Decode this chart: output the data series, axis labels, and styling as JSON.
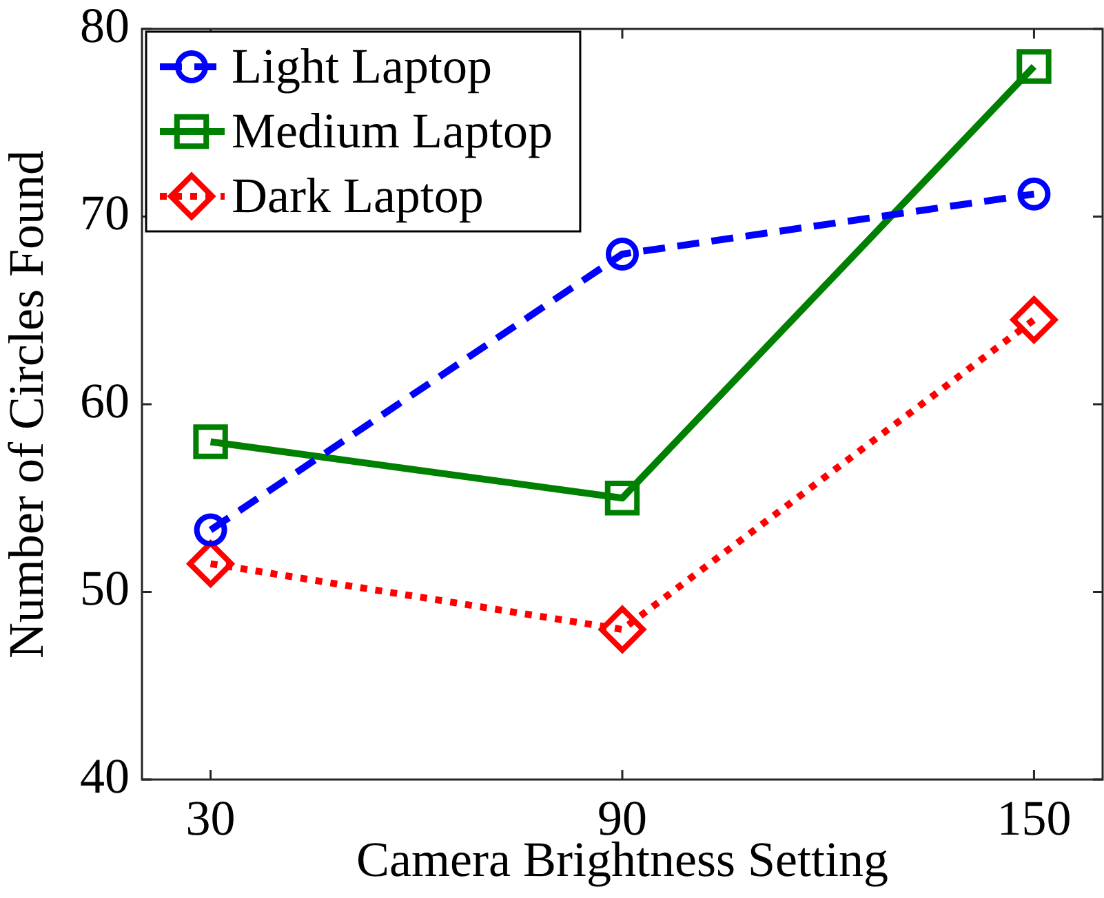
{
  "chart_data": {
    "type": "line",
    "xlabel": "Camera Brightness Setting",
    "ylabel": "Number of Circles Found",
    "x": [
      30,
      90,
      150
    ],
    "series": [
      {
        "name": "Light Laptop",
        "color": "#0000ff",
        "values": [
          53.3,
          68,
          71.2
        ],
        "marker": "circle",
        "line_style": "dashed"
      },
      {
        "name": "Medium Laptop",
        "color": "#008000",
        "values": [
          58,
          55,
          78
        ],
        "marker": "square",
        "line_style": "solid"
      },
      {
        "name": "Dark Laptop",
        "color": "#ff0000",
        "values": [
          51.5,
          48,
          64.5
        ],
        "marker": "diamond",
        "line_style": "dotted"
      }
    ],
    "xlim": [
      20,
      160
    ],
    "xticks": [
      30,
      90,
      150
    ],
    "ylim": [
      40,
      80
    ],
    "yticks": [
      40,
      50,
      60,
      70,
      80
    ],
    "grid": false,
    "legend": "top left"
  }
}
